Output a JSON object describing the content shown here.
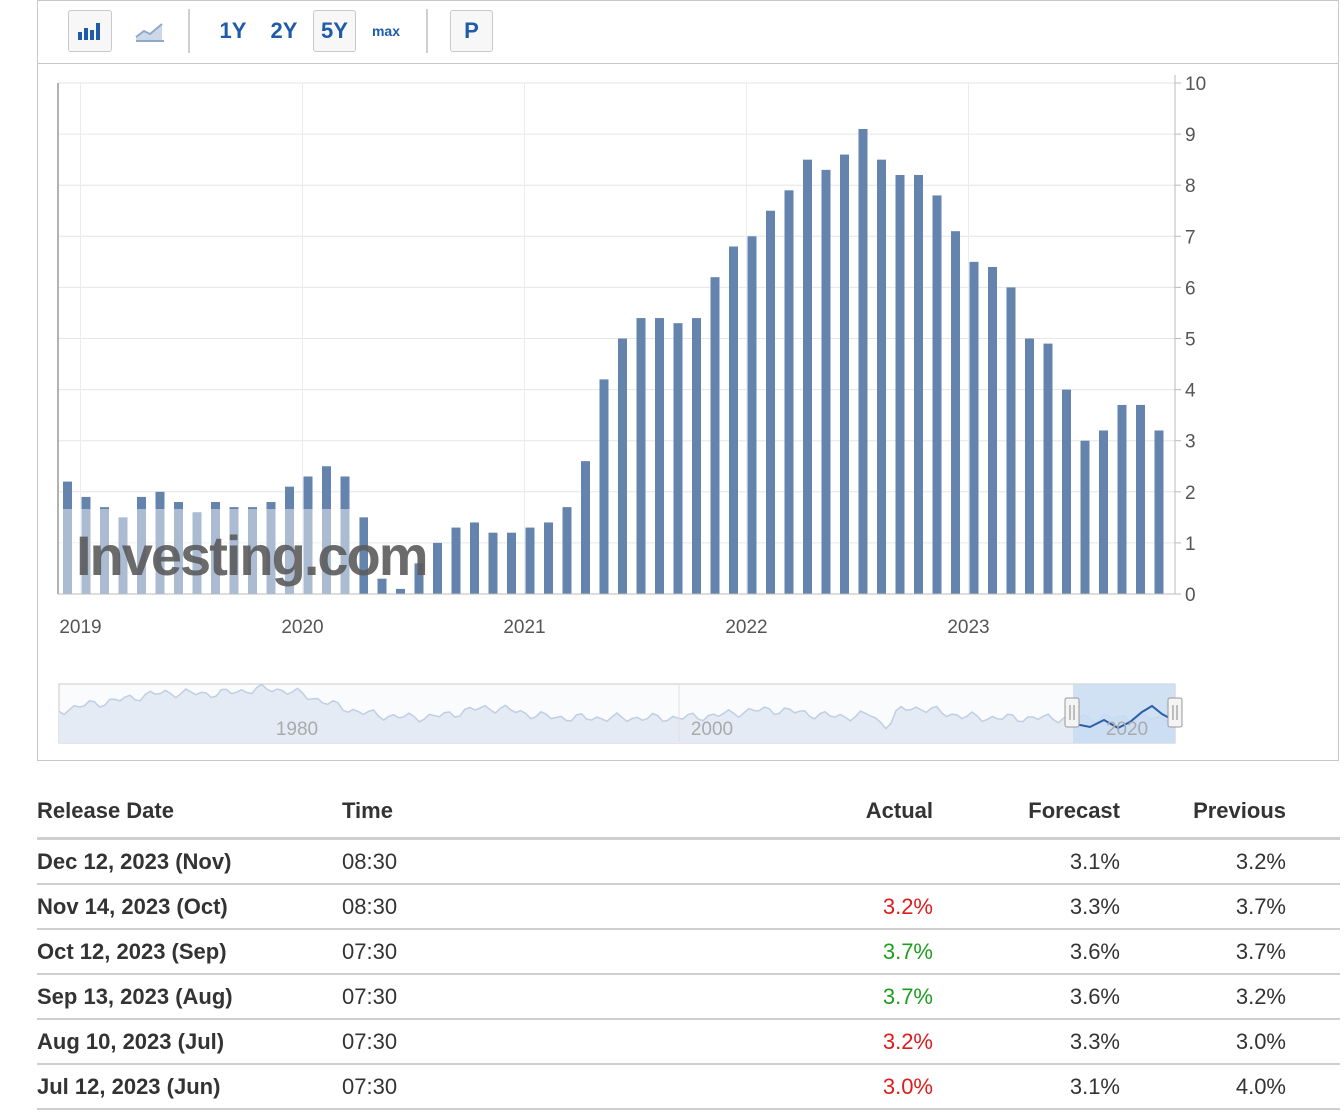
{
  "toolbar": {
    "bar_icon": "bar-chart-icon",
    "line_icon": "line-chart-icon",
    "ranges": [
      "1Y",
      "2Y",
      "5Y",
      "max"
    ],
    "selected_range": "5Y",
    "p_label": "P"
  },
  "chart_data": {
    "type": "bar",
    "y_ticks": [
      "0",
      "1",
      "2",
      "3",
      "4",
      "5",
      "6",
      "7",
      "8",
      "9",
      "10"
    ],
    "ylim": [
      0,
      10
    ],
    "x_tick_labels": [
      "2019",
      "2020",
      "2021",
      "2022",
      "2023"
    ],
    "grid": true,
    "series": [
      {
        "values": [
          2.2,
          1.9,
          1.7,
          1.5,
          1.9,
          2.0,
          1.8,
          1.6,
          1.8,
          1.7,
          1.7,
          1.8,
          2.1,
          2.3,
          2.5,
          2.3,
          1.5,
          0.3,
          0.1,
          0.6,
          1.0,
          1.3,
          1.4,
          1.2,
          1.2,
          1.3,
          1.4,
          1.7,
          2.6,
          4.2,
          5.0,
          5.4,
          5.4,
          5.3,
          5.4,
          6.2,
          6.8,
          7.0,
          7.5,
          7.9,
          8.5,
          8.3,
          8.6,
          9.1,
          8.5,
          8.2,
          8.2,
          7.8,
          7.1,
          6.5,
          6.4,
          6.0,
          5.0,
          4.9,
          4.0,
          3.0,
          3.2,
          3.7,
          3.7,
          3.2
        ]
      }
    ],
    "watermark": "Investing.com",
    "navigator": {
      "labels": [
        "1980",
        "2000",
        "2020"
      ]
    }
  },
  "table": {
    "headers": {
      "release_date": "Release Date",
      "time": "Time",
      "actual": "Actual",
      "forecast": "Forecast",
      "previous": "Previous"
    },
    "rows": [
      {
        "date": "Dec 12, 2023 (Nov)",
        "time": "08:30",
        "actual": "",
        "actual_status": "none",
        "forecast": "3.1%",
        "previous": "3.2%"
      },
      {
        "date": "Nov 14, 2023 (Oct)",
        "time": "08:30",
        "actual": "3.2%",
        "actual_status": "negative",
        "forecast": "3.3%",
        "previous": "3.7%"
      },
      {
        "date": "Oct 12, 2023 (Sep)",
        "time": "07:30",
        "actual": "3.7%",
        "actual_status": "positive",
        "forecast": "3.6%",
        "previous": "3.7%"
      },
      {
        "date": "Sep 13, 2023 (Aug)",
        "time": "07:30",
        "actual": "3.7%",
        "actual_status": "positive",
        "forecast": "3.6%",
        "previous": "3.2%"
      },
      {
        "date": "Aug 10, 2023 (Jul)",
        "time": "07:30",
        "actual": "3.2%",
        "actual_status": "negative",
        "forecast": "3.3%",
        "previous": "3.0%"
      },
      {
        "date": "Jul 12, 2023 (Jun)",
        "time": "07:30",
        "actual": "3.0%",
        "actual_status": "negative",
        "forecast": "3.1%",
        "previous": "4.0%"
      }
    ]
  },
  "colors": {
    "bar": "#6484ad",
    "bar_light": "#b5c6dc",
    "accent": "#1f5ba8",
    "negative": "#e01b1b",
    "positive": "#1e9e1e"
  }
}
